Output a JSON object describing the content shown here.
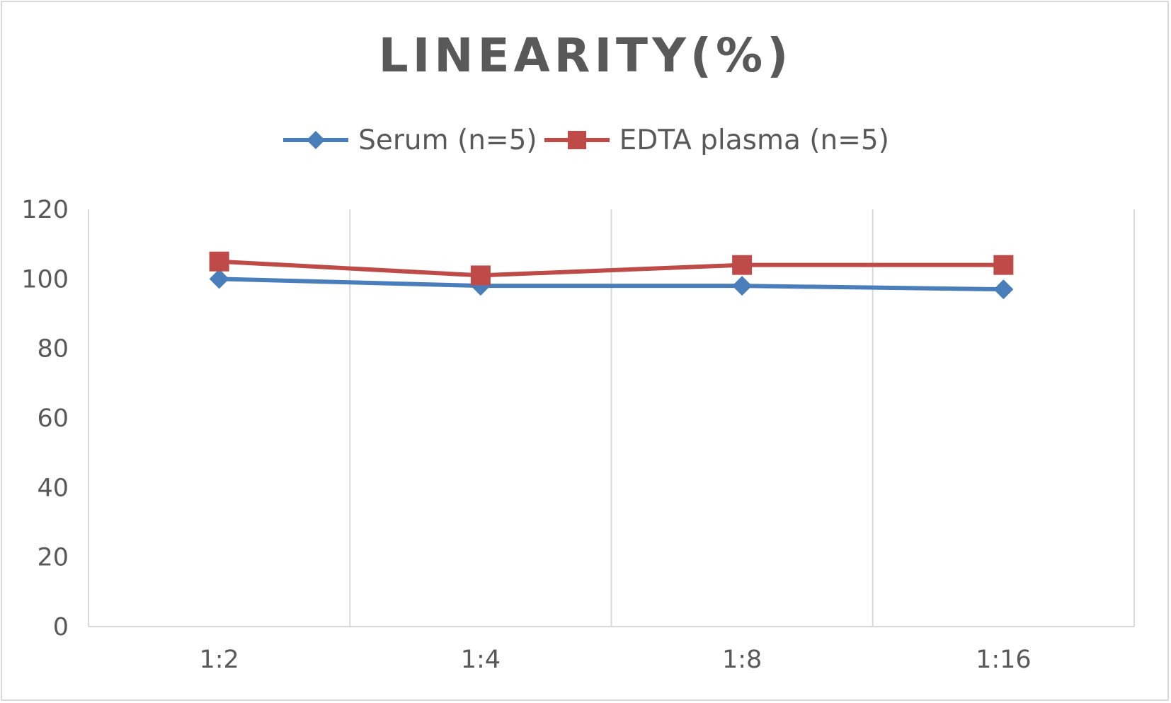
{
  "chart_data": {
    "type": "line",
    "title": "LINEARITY(%)",
    "categories": [
      "1:2",
      "1:4",
      "1:8",
      "1:16"
    ],
    "series": [
      {
        "name": "Serum (n=5)",
        "color": "#4a7ebb",
        "marker": "diamond",
        "values": [
          100,
          98,
          98,
          97
        ]
      },
      {
        "name": "EDTA plasma (n=5)",
        "color": "#be4b48",
        "marker": "square",
        "values": [
          105,
          101,
          104,
          104
        ]
      }
    ],
    "ylim": [
      0,
      120
    ],
    "yticks": [
      "0",
      "20",
      "40",
      "60",
      "80",
      "100",
      "120"
    ],
    "xlabel": "",
    "ylabel": "",
    "grid": "vertical",
    "legend": "top"
  }
}
